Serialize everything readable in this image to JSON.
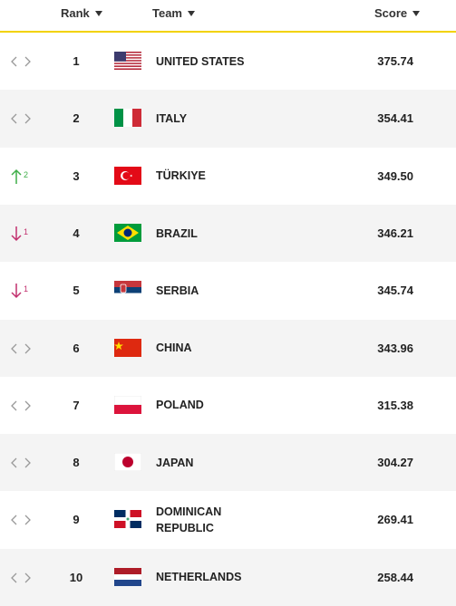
{
  "header": {
    "rank": "Rank",
    "team": "Team",
    "score": "Score"
  },
  "rows": [
    {
      "rank": "1",
      "team": "UNITED STATES",
      "score": "375.74",
      "movement": "same"
    },
    {
      "rank": "2",
      "team": "ITALY",
      "score": "354.41",
      "movement": "same"
    },
    {
      "rank": "3",
      "team": "TÜRKIYE",
      "score": "349.50",
      "movement": "up",
      "change": "2"
    },
    {
      "rank": "4",
      "team": "BRAZIL",
      "score": "346.21",
      "movement": "down",
      "change": "1"
    },
    {
      "rank": "5",
      "team": "SERBIA",
      "score": "345.74",
      "movement": "down",
      "change": "1"
    },
    {
      "rank": "6",
      "team": "CHINA",
      "score": "343.96",
      "movement": "same"
    },
    {
      "rank": "7",
      "team": "POLAND",
      "score": "315.38",
      "movement": "same"
    },
    {
      "rank": "8",
      "team": "JAPAN",
      "score": "304.27",
      "movement": "same"
    },
    {
      "rank": "9",
      "team": "DOMINICAN REPUBLIC",
      "score": "269.41",
      "movement": "same"
    },
    {
      "rank": "10",
      "team": "NETHERLANDS",
      "score": "258.44",
      "movement": "same"
    }
  ]
}
